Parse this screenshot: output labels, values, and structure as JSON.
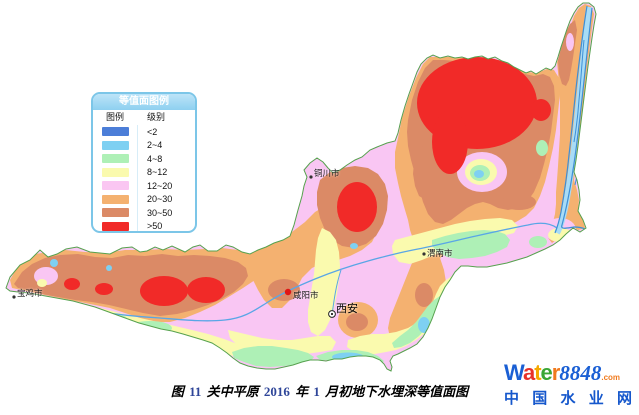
{
  "legend": {
    "title": "等值面图例",
    "col_symbol": "图例",
    "col_level": "级别",
    "items": [
      {
        "label": "<2",
        "color": "#4c7ed8"
      },
      {
        "label": "2~4",
        "color": "#7ed0f2"
      },
      {
        "label": "4~8",
        "color": "#aef0b6"
      },
      {
        "label": "8~12",
        "color": "#fafaae"
      },
      {
        "label": "12~20",
        "color": "#fac6f2"
      },
      {
        "label": "20~30",
        "color": "#f4b170"
      },
      {
        "label": "30~50",
        "color": "#db8a66"
      },
      {
        "label": ">50",
        "color": "#f12a28"
      }
    ]
  },
  "map": {
    "border_color": "#56a14e",
    "river_color": "#59a6e6",
    "cities": [
      {
        "name": "宝鸡市"
      },
      {
        "name": "铜川市"
      },
      {
        "name": "咸阳市"
      },
      {
        "name": "西安"
      },
      {
        "name": "渭南市"
      }
    ]
  },
  "caption": {
    "prefix": "图 ",
    "fig_num": "11",
    "part1": "  关中平原 ",
    "year": "2016",
    "part2": " 年 ",
    "month": "1",
    "part3": " 月初地下水埋深等值面图"
  },
  "logo": {
    "word_letters": [
      {
        "ch": "W",
        "color": "#1a5fd4"
      },
      {
        "ch": "a",
        "color": "#e8312a"
      },
      {
        "ch": "t",
        "color": "#f5a800"
      },
      {
        "ch": "e",
        "color": "#3aa635"
      },
      {
        "ch": "r",
        "color": "#f07a1e"
      }
    ],
    "number": "8848",
    "domain": ".com",
    "cn_name": "中国水业网"
  }
}
